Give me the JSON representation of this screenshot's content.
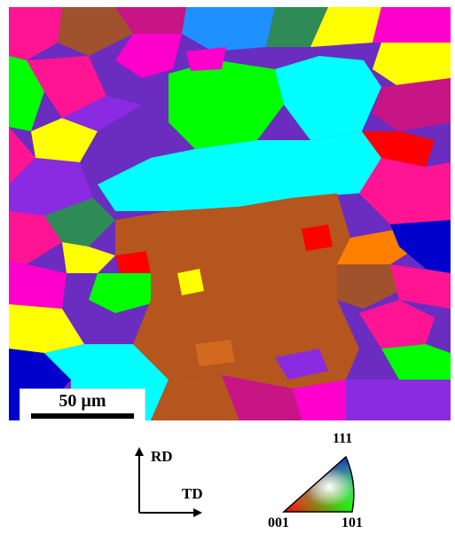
{
  "scale_bar": {
    "label": "50 µm"
  },
  "axes": {
    "rd": "RD",
    "td": "TD"
  },
  "ipf": {
    "top": "111",
    "left": "001",
    "right": "101"
  },
  "grain_colors": [
    "#ff1493",
    "#8a2be2",
    "#00ffff",
    "#b5561e",
    "#00ff00",
    "#ffff00",
    "#1e90ff",
    "#0000cd",
    "#ff0000",
    "#ff7f00",
    "#ff00cc",
    "#2e8b57",
    "#c71585",
    "#7fff00",
    "#4169e1",
    "#d2691e"
  ]
}
